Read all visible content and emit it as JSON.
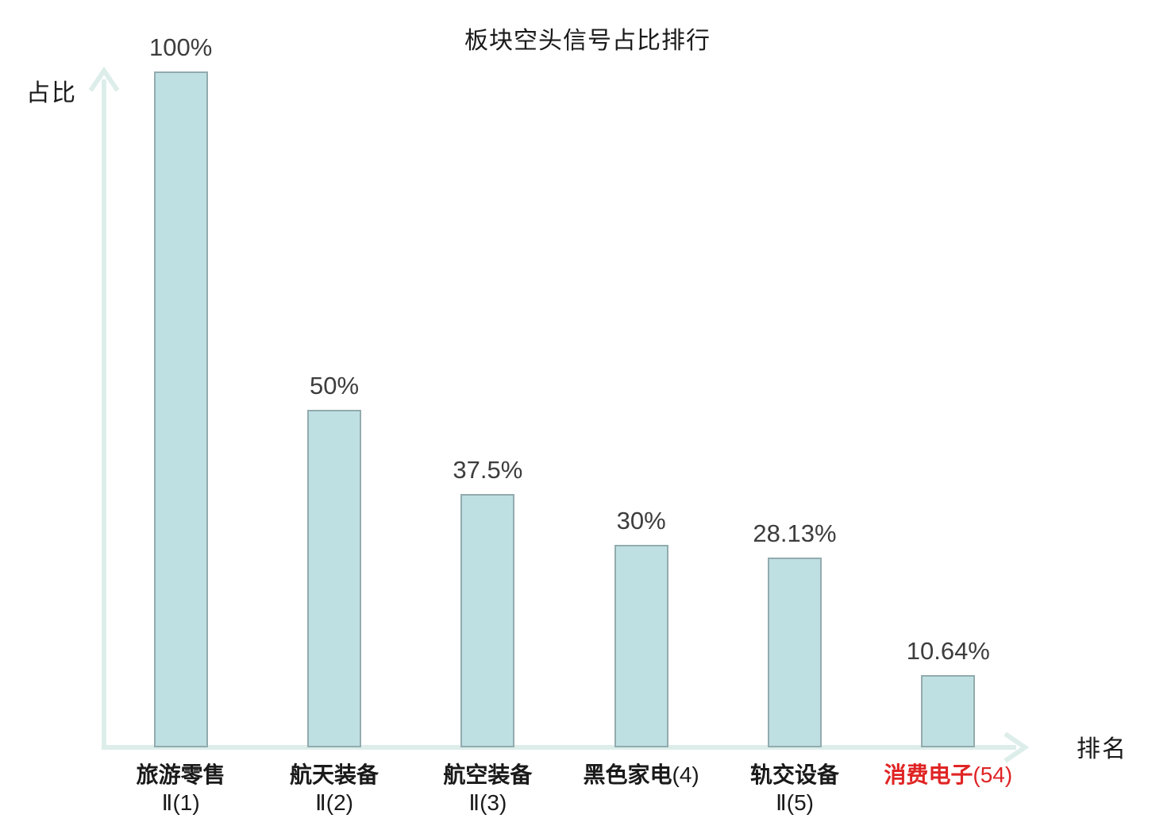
{
  "title": "板块空头信号占比排行",
  "y_axis_label": "占比",
  "x_axis_label": "排名",
  "colors": {
    "bar_fill": "#bfe0e3",
    "bar_border": "#92abae",
    "axis": "#ddeeea",
    "value_text": "#3d3d3d",
    "label_text": "#1a1a1a",
    "highlight_text": "#e02424"
  },
  "chart_data": {
    "type": "bar",
    "title": "板块空头信号占比排行",
    "xlabel": "排名",
    "ylabel": "占比",
    "ylim": [
      0,
      100
    ],
    "grid": false,
    "legend": false,
    "categories": [
      "旅游零售Ⅱ(1)",
      "航天装备Ⅱ(2)",
      "航空装备Ⅱ(3)",
      "黑色家电(4)",
      "轨交设备Ⅱ(5)",
      "消费电子(54)"
    ],
    "values": [
      100,
      50,
      37.5,
      30,
      28.13,
      10.64
    ],
    "bars": [
      {
        "name": "旅游零售",
        "rank_suffix": "Ⅱ(1)",
        "suffix_on_new_line": true,
        "value": 100,
        "value_label": "100%",
        "highlighted": false
      },
      {
        "name": "航天装备",
        "rank_suffix": "Ⅱ(2)",
        "suffix_on_new_line": true,
        "value": 50,
        "value_label": "50%",
        "highlighted": false
      },
      {
        "name": "航空装备",
        "rank_suffix": "Ⅱ(3)",
        "suffix_on_new_line": true,
        "value": 37.5,
        "value_label": "37.5%",
        "highlighted": false
      },
      {
        "name": "黑色家电",
        "rank_suffix": "(4)",
        "suffix_on_new_line": false,
        "value": 30,
        "value_label": "30%",
        "highlighted": false
      },
      {
        "name": "轨交设备",
        "rank_suffix": "Ⅱ(5)",
        "suffix_on_new_line": true,
        "value": 28.13,
        "value_label": "28.13%",
        "highlighted": false
      },
      {
        "name": "消费电子",
        "rank_suffix": "(54)",
        "suffix_on_new_line": false,
        "value": 10.64,
        "value_label": "10.64%",
        "highlighted": true
      }
    ]
  }
}
